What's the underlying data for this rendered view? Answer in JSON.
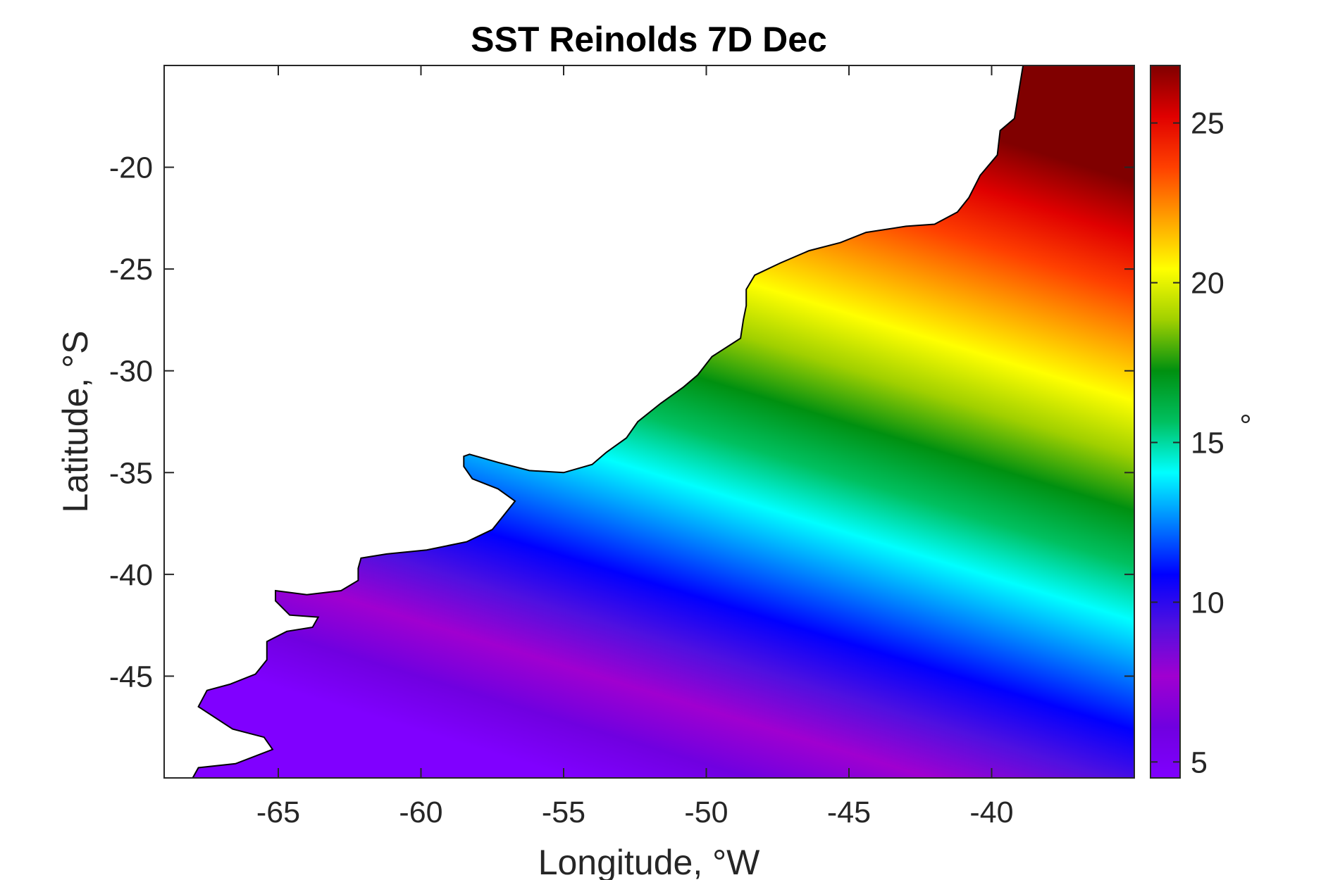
{
  "chart_data": {
    "type": "heatmap",
    "title": "SST Reinolds 7D Dec",
    "xlabel": "Longitude, °W",
    "ylabel": "Latitude, °S",
    "colorbar_label": "°",
    "xlim": [
      -69,
      -35
    ],
    "ylim": [
      -50,
      -15
    ],
    "xticks": [
      -65,
      -60,
      -55,
      -50,
      -45,
      -40
    ],
    "xtick_labels": [
      "-65",
      "-60",
      "-55",
      "-50",
      "-45",
      "-40"
    ],
    "yticks": [
      -20,
      -25,
      -30,
      -35,
      -40,
      -45
    ],
    "ytick_labels": [
      "-20",
      "-25",
      "-30",
      "-35",
      "-40",
      "-45"
    ],
    "clim": [
      4.5,
      26.8
    ],
    "colorbar_ticks": [
      25,
      20,
      15,
      10,
      5
    ],
    "colorbar_tick_labels": [
      "25",
      "20",
      "15",
      "10",
      "5"
    ],
    "colormap": [
      "#8000ff",
      "#7000e0",
      "#a000d0",
      "#5010e0",
      "#0000ff",
      "#0080ff",
      "#00ffff",
      "#00c060",
      "#009010",
      "#a0d000",
      "#ffff00",
      "#ffa000",
      "#ff4000",
      "#e00000",
      "#800000"
    ],
    "land_color": "#ffffff",
    "coast_color": "#000000",
    "grid": false,
    "coastline": [
      [
        -68,
        -50
      ],
      [
        -67.8,
        -49.5
      ],
      [
        -66.5,
        -49.3
      ],
      [
        -65.2,
        -48.6
      ],
      [
        -65.5,
        -48
      ],
      [
        -66.6,
        -47.6
      ],
      [
        -67.8,
        -46.5
      ],
      [
        -67.5,
        -45.7
      ],
      [
        -66.7,
        -45.4
      ],
      [
        -65.8,
        -44.9
      ],
      [
        -65.4,
        -44.2
      ],
      [
        -65.4,
        -43.3
      ],
      [
        -64.7,
        -42.8
      ],
      [
        -63.8,
        -42.6
      ],
      [
        -63.6,
        -42.1
      ],
      [
        -64.6,
        -42
      ],
      [
        -65.1,
        -41.3
      ],
      [
        -65.1,
        -40.8
      ],
      [
        -64,
        -41
      ],
      [
        -62.8,
        -40.8
      ],
      [
        -62.2,
        -40.3
      ],
      [
        -62.2,
        -39.7
      ],
      [
        -62.1,
        -39.2
      ],
      [
        -61.2,
        -39
      ],
      [
        -59.8,
        -38.8
      ],
      [
        -58.4,
        -38.4
      ],
      [
        -57.5,
        -37.8
      ],
      [
        -57.1,
        -37.1
      ],
      [
        -56.7,
        -36.4
      ],
      [
        -57.3,
        -35.8
      ],
      [
        -58.2,
        -35.3
      ],
      [
        -58.5,
        -34.7
      ],
      [
        -58.5,
        -34.2
      ],
      [
        -58.3,
        -34.1
      ],
      [
        -57.3,
        -34.5
      ],
      [
        -56.2,
        -34.9
      ],
      [
        -55,
        -35
      ],
      [
        -54,
        -34.6
      ],
      [
        -53.5,
        -34
      ],
      [
        -52.8,
        -33.3
      ],
      [
        -52.4,
        -32.5
      ],
      [
        -51.6,
        -31.6
      ],
      [
        -50.8,
        -30.8
      ],
      [
        -50.3,
        -30.2
      ],
      [
        -49.8,
        -29.3
      ],
      [
        -48.8,
        -28.4
      ],
      [
        -48.7,
        -27.5
      ],
      [
        -48.6,
        -26.8
      ],
      [
        -48.6,
        -26
      ],
      [
        -48.3,
        -25.3
      ],
      [
        -47.4,
        -24.7
      ],
      [
        -46.4,
        -24.1
      ],
      [
        -45.3,
        -23.7
      ],
      [
        -44.4,
        -23.2
      ],
      [
        -43,
        -22.9
      ],
      [
        -42,
        -22.8
      ],
      [
        -41.2,
        -22.2
      ],
      [
        -40.8,
        -21.5
      ],
      [
        -40.4,
        -20.4
      ],
      [
        -39.8,
        -19.4
      ],
      [
        -39.7,
        -18.2
      ],
      [
        -39.2,
        -17.6
      ],
      [
        -38.9,
        -15
      ]
    ]
  }
}
